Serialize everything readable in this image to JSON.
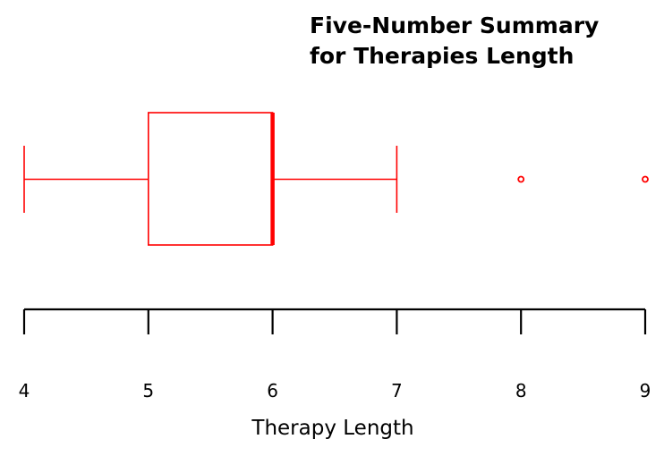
{
  "chart_data": {
    "type": "boxplot",
    "orientation": "horizontal",
    "title": [
      "Five-Number Summary",
      "for Therapies Length"
    ],
    "xlabel": "Therapy Length",
    "ylabel": "",
    "xlim": [
      4,
      9
    ],
    "ticks": [
      4,
      5,
      6,
      7,
      8,
      9
    ],
    "tick_labels": [
      "4",
      "5",
      "6",
      "7",
      "8",
      "9"
    ],
    "grid": false,
    "box": {
      "whisker_low": 4,
      "q1": 5,
      "median": 6,
      "q3": 6,
      "whisker_high": 7,
      "outliers": [
        8,
        9
      ]
    },
    "colors": {
      "box": "#ff0000",
      "axis": "#000000"
    }
  }
}
